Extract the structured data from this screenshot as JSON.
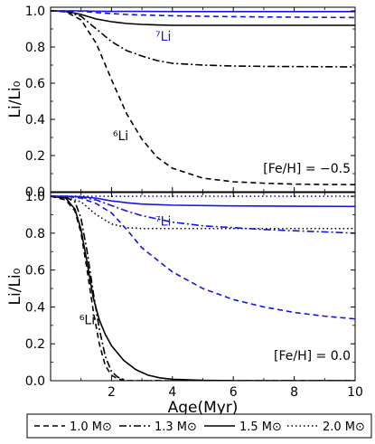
{
  "chart_data": {
    "type": "line",
    "xlabel": "Age(Myr)",
    "x_ticks": [
      "2",
      "4",
      "6",
      "8",
      "10"
    ],
    "xlim": [
      0,
      10
    ],
    "legend": {
      "placement": "bottom",
      "entries": [
        {
          "label": "1.0 M⊙",
          "dash": "dashed"
        },
        {
          "label": "1.3 M⊙",
          "dash": "dashdot"
        },
        {
          "label": "1.5 M⊙",
          "dash": "solid"
        },
        {
          "label": "2.0 M⊙",
          "dash": "dotted"
        }
      ]
    },
    "colors": {
      "li6": "#000000",
      "li7": "#1515e0"
    },
    "panels": [
      {
        "id": "top",
        "ylabel": "Li/Li₀",
        "ylim": [
          0,
          1.02
        ],
        "y_ticks": [
          "0.0",
          "0.2",
          "0.4",
          "0.6",
          "0.8",
          "1.0"
        ],
        "annotation": "[Fe/H] = −0.5",
        "labels": [
          {
            "text": "⁷Li",
            "x": 3.7,
            "y": 0.86,
            "color": "li7"
          },
          {
            "text": "⁶Li",
            "x": 2.3,
            "y": 0.31,
            "color": "li6"
          }
        ],
        "series": [
          {
            "mass": "1.0 M⊙",
            "isotope": "6Li",
            "dash": "dashed",
            "x": [
              0,
              0.5,
              1.0,
              1.5,
              2.0,
              2.5,
              3.0,
              3.5,
              4.0,
              5.0,
              6.0,
              7.0,
              8.0,
              9.0,
              10.0
            ],
            "y": [
              1.0,
              0.995,
              0.95,
              0.82,
              0.62,
              0.43,
              0.29,
              0.19,
              0.13,
              0.075,
              0.055,
              0.047,
              0.042,
              0.04,
              0.039
            ]
          },
          {
            "mass": "1.3 M⊙",
            "isotope": "6Li",
            "dash": "dashdot",
            "x": [
              0,
              0.5,
              1.0,
              1.5,
              2.0,
              2.5,
              3.0,
              3.5,
              4.0,
              5.0,
              6.0,
              7.0,
              8.0,
              9.0,
              10.0
            ],
            "y": [
              1.0,
              0.997,
              0.97,
              0.9,
              0.83,
              0.78,
              0.75,
              0.725,
              0.71,
              0.7,
              0.695,
              0.693,
              0.692,
              0.691,
              0.69
            ]
          },
          {
            "mass": "1.5 M⊙",
            "isotope": "6Li",
            "dash": "solid",
            "x": [
              0,
              0.5,
              1.0,
              1.5,
              2.0,
              2.5,
              3.0,
              3.5,
              4.0,
              5.0,
              6.0,
              8.0,
              10.0
            ],
            "y": [
              1.0,
              0.998,
              0.98,
              0.955,
              0.94,
              0.93,
              0.925,
              0.922,
              0.92,
              0.92,
              0.92,
              0.92,
              0.92
            ]
          },
          {
            "mass": "1.0 M⊙",
            "isotope": "7Li",
            "dash": "dashed",
            "x": [
              0,
              0.5,
              1.0,
              1.5,
              2.0,
              2.5,
              3.0,
              4.0,
              5.0,
              6.0,
              7.0,
              8.0,
              9.0,
              10.0
            ],
            "y": [
              1.0,
              1.0,
              0.998,
              0.99,
              0.985,
              0.98,
              0.977,
              0.973,
              0.97,
              0.968,
              0.966,
              0.965,
              0.964,
              0.963
            ]
          },
          {
            "mass": "1.5 M⊙",
            "isotope": "7Li",
            "dash": "solid",
            "x": [
              0,
              0.5,
              1.0,
              1.5,
              2.0,
              2.5,
              3.0,
              4.0,
              6.0,
              8.0,
              10.0
            ],
            "y": [
              1.0,
              1.0,
              1.0,
              0.998,
              0.997,
              0.997,
              0.997,
              0.996,
              0.996,
              0.996,
              0.996
            ]
          }
        ]
      },
      {
        "id": "bottom",
        "ylabel": "Li/Li₀",
        "ylim": [
          0,
          1.02
        ],
        "y_ticks": [
          "0.0",
          "0.2",
          "0.4",
          "0.6",
          "0.8",
          "1.0"
        ],
        "annotation": "[Fe/H] = 0.0",
        "labels": [
          {
            "text": "⁷Li",
            "x": 3.7,
            "y": 0.865,
            "color": "li7"
          },
          {
            "text": "⁶Li",
            "x": 1.2,
            "y": 0.33,
            "color": "li6"
          }
        ],
        "series": [
          {
            "mass": "1.0 M⊙",
            "isotope": "6Li",
            "dash": "dashed",
            "x": [
              0,
              0.5,
              0.8,
              1.0,
              1.2,
              1.4,
              1.6,
              1.8,
              2.0,
              2.2,
              2.5,
              3.0,
              10.0
            ],
            "y": [
              1.0,
              0.98,
              0.92,
              0.8,
              0.6,
              0.38,
              0.2,
              0.08,
              0.03,
              0.01,
              0.0,
              0.0,
              0.0
            ]
          },
          {
            "mass": "1.3 M⊙",
            "isotope": "6Li",
            "dash": "dashdot",
            "x": [
              0,
              0.5,
              0.8,
              1.0,
              1.2,
              1.4,
              1.6,
              1.8,
              2.0,
              2.2,
              2.5,
              3.0,
              10.0
            ],
            "y": [
              1.0,
              0.995,
              0.97,
              0.88,
              0.7,
              0.48,
              0.28,
              0.13,
              0.05,
              0.02,
              0.0,
              0.0,
              0.0
            ]
          },
          {
            "mass": "1.5 M⊙",
            "isotope": "6Li",
            "dash": "solid",
            "x": [
              0,
              0.5,
              0.8,
              1.0,
              1.2,
              1.4,
              1.6,
              1.8,
              2.0,
              2.4,
              2.8,
              3.2,
              3.6,
              4.0,
              5.0,
              6.0,
              8.0,
              10.0
            ],
            "y": [
              1.0,
              0.99,
              0.93,
              0.82,
              0.64,
              0.45,
              0.33,
              0.25,
              0.19,
              0.11,
              0.06,
              0.03,
              0.015,
              0.008,
              0.002,
              0.0,
              0.0,
              0.0
            ]
          },
          {
            "mass": "2.0 M⊙",
            "isotope": "6Li",
            "dash": "dotted",
            "x": [
              0,
              0.5,
              1.0,
              1.5,
              2.0,
              2.5,
              3.0,
              4.0,
              6.0,
              8.0,
              10.0
            ],
            "y": [
              1.0,
              0.995,
              0.97,
              0.9,
              0.85,
              0.83,
              0.825,
              0.825,
              0.825,
              0.825,
              0.825
            ]
          },
          {
            "mass": "1.0 M⊙",
            "isotope": "7Li",
            "dash": "dashed",
            "x": [
              0,
              0.5,
              1.0,
              1.5,
              2.0,
              2.5,
              3.0,
              4.0,
              5.0,
              6.0,
              7.0,
              8.0,
              9.0,
              10.0
            ],
            "y": [
              1.0,
              0.999,
              0.99,
              0.96,
              0.91,
              0.82,
              0.72,
              0.59,
              0.5,
              0.44,
              0.4,
              0.37,
              0.35,
              0.335
            ]
          },
          {
            "mass": "1.3 M⊙",
            "isotope": "7Li",
            "dash": "dashdot",
            "x": [
              0,
              0.5,
              1.0,
              1.5,
              2.0,
              2.5,
              3.0,
              4.0,
              5.0,
              6.0,
              7.0,
              8.0,
              9.0,
              10.0
            ],
            "y": [
              1.0,
              1.0,
              0.995,
              0.98,
              0.95,
              0.92,
              0.895,
              0.86,
              0.84,
              0.83,
              0.82,
              0.813,
              0.807,
              0.8
            ]
          },
          {
            "mass": "1.5 M⊙",
            "isotope": "7Li",
            "dash": "solid",
            "x": [
              0,
              0.5,
              1.0,
              1.5,
              2.0,
              2.5,
              3.0,
              4.0,
              6.0,
              8.0,
              10.0
            ],
            "y": [
              1.0,
              1.0,
              0.998,
              0.99,
              0.975,
              0.965,
              0.958,
              0.952,
              0.948,
              0.946,
              0.945
            ]
          },
          {
            "mass": "2.0 M⊙",
            "isotope": "7Li",
            "dash": "dotted",
            "x": [
              0,
              1.0,
              2.0,
              4.0,
              6.0,
              8.0,
              10.0
            ],
            "y": [
              1.0,
              1.0,
              1.0,
              1.0,
              1.0,
              1.0,
              1.0
            ]
          }
        ]
      }
    ]
  }
}
